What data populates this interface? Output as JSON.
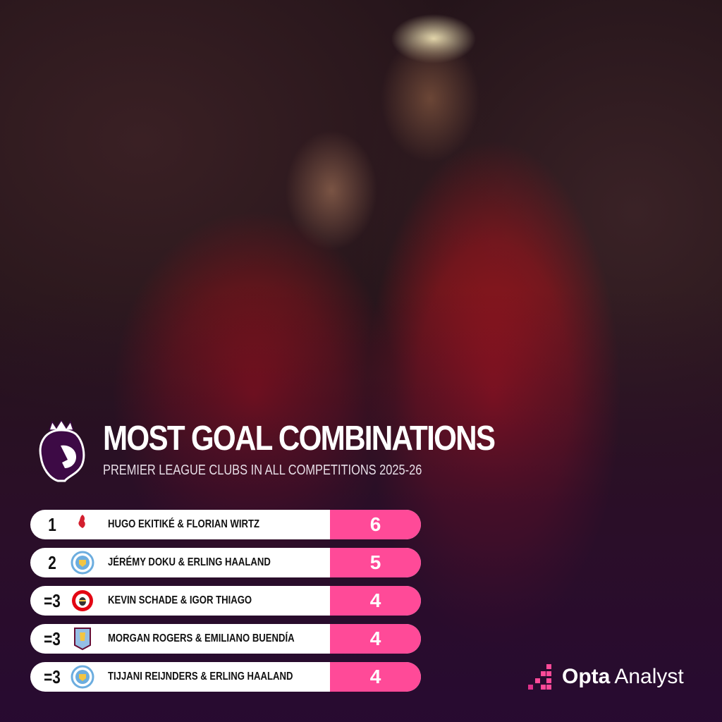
{
  "header": {
    "title": "MOST GOAL COMBINATIONS",
    "subtitle": "PREMIER LEAGUE CLUBS IN ALL COMPETITIONS 2025-26"
  },
  "rows": [
    {
      "rank": "1",
      "club_icon": "liverpool-crest",
      "names": "HUGO EKITIKÉ & FLORIAN WIRTZ",
      "value": "6"
    },
    {
      "rank": "2",
      "club_icon": "man-city-crest",
      "names": "JÉRÉMY DOKU & ERLING HAALAND",
      "value": "5"
    },
    {
      "rank": "=3",
      "club_icon": "brentford-crest",
      "names": "KEVIN SCHADE & IGOR THIAGO",
      "value": "4"
    },
    {
      "rank": "=3",
      "club_icon": "aston-villa-crest",
      "names": "MORGAN ROGERS & EMILIANO BUENDÍA",
      "value": "4"
    },
    {
      "rank": "=3",
      "club_icon": "man-city-crest",
      "names": "TIJJANI REIJNDERS & ERLING HAALAND",
      "value": "4"
    }
  ],
  "brand": {
    "bold": "Opta",
    "light": "Analyst"
  },
  "colors": {
    "accent": "#ff4a98",
    "pl_purple": "#3d0a45"
  }
}
